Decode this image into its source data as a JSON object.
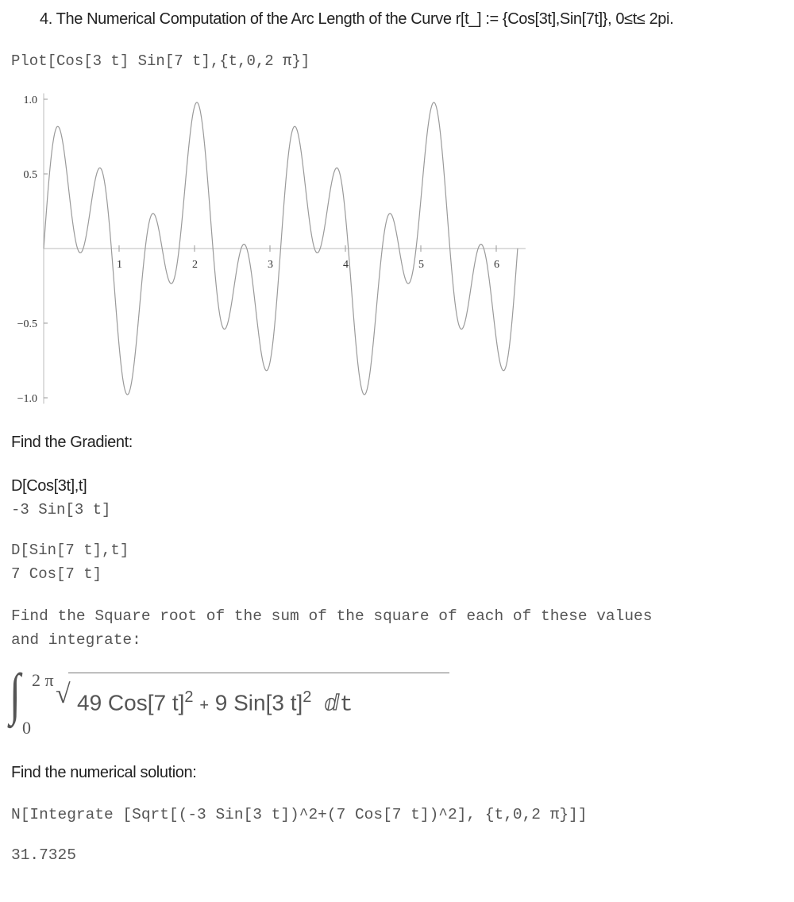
{
  "heading": "4.   The Numerical Computation of the Arc Length of the Curve r[t_] := {Cos[3t],Sin[7t]}, 0≤t≤ 2pi.",
  "plot_input": "Plot[Cos[3 t] Sin[7 t],{t,0,2 π}]",
  "chart_data": {
    "type": "line",
    "function": "Cos[3 t] Sin[7 t]",
    "x_range": [
      0,
      6.2832
    ],
    "ylim": [
      -1.05,
      1.05
    ],
    "x_ticks": [
      "1",
      "2",
      "3",
      "4",
      "5",
      "6"
    ],
    "x_tick_values": [
      1,
      2,
      3,
      4,
      5,
      6
    ],
    "y_ticks": [
      "1.0",
      "0.5",
      "−0.5",
      "−1.0"
    ],
    "y_tick_values": [
      1.0,
      0.5,
      -0.5,
      -1.0
    ],
    "grid": false,
    "line_color": "#9a9a9a"
  },
  "gradient_heading": "Find the Gradient:",
  "d1_input": "D[Cos[3t],t]",
  "d1_output": "-3 Sin[3 t]",
  "d2_input": "D[Sin[7 t],t]",
  "d2_output": "7 Cos[7 t]",
  "sqrt_text_1": "Find the Square root of the sum of the square of each of these values",
  "sqrt_text_2": "and integrate:",
  "integral": {
    "upper": "2 π",
    "lower": "0",
    "term1": "49 Cos[7 t]",
    "exp1": "2",
    "plus": "+",
    "term2": "9 Sin[3 t]",
    "exp2": "2",
    "dt": "ⅆt"
  },
  "numerical_heading": "Find the numerical solution:",
  "n_input": "N[Integrate [Sqrt[(-3 Sin[3 t])^2+(7 Cos[7 t])^2], {t,0,2 π}]]",
  "n_output": "31.7325"
}
